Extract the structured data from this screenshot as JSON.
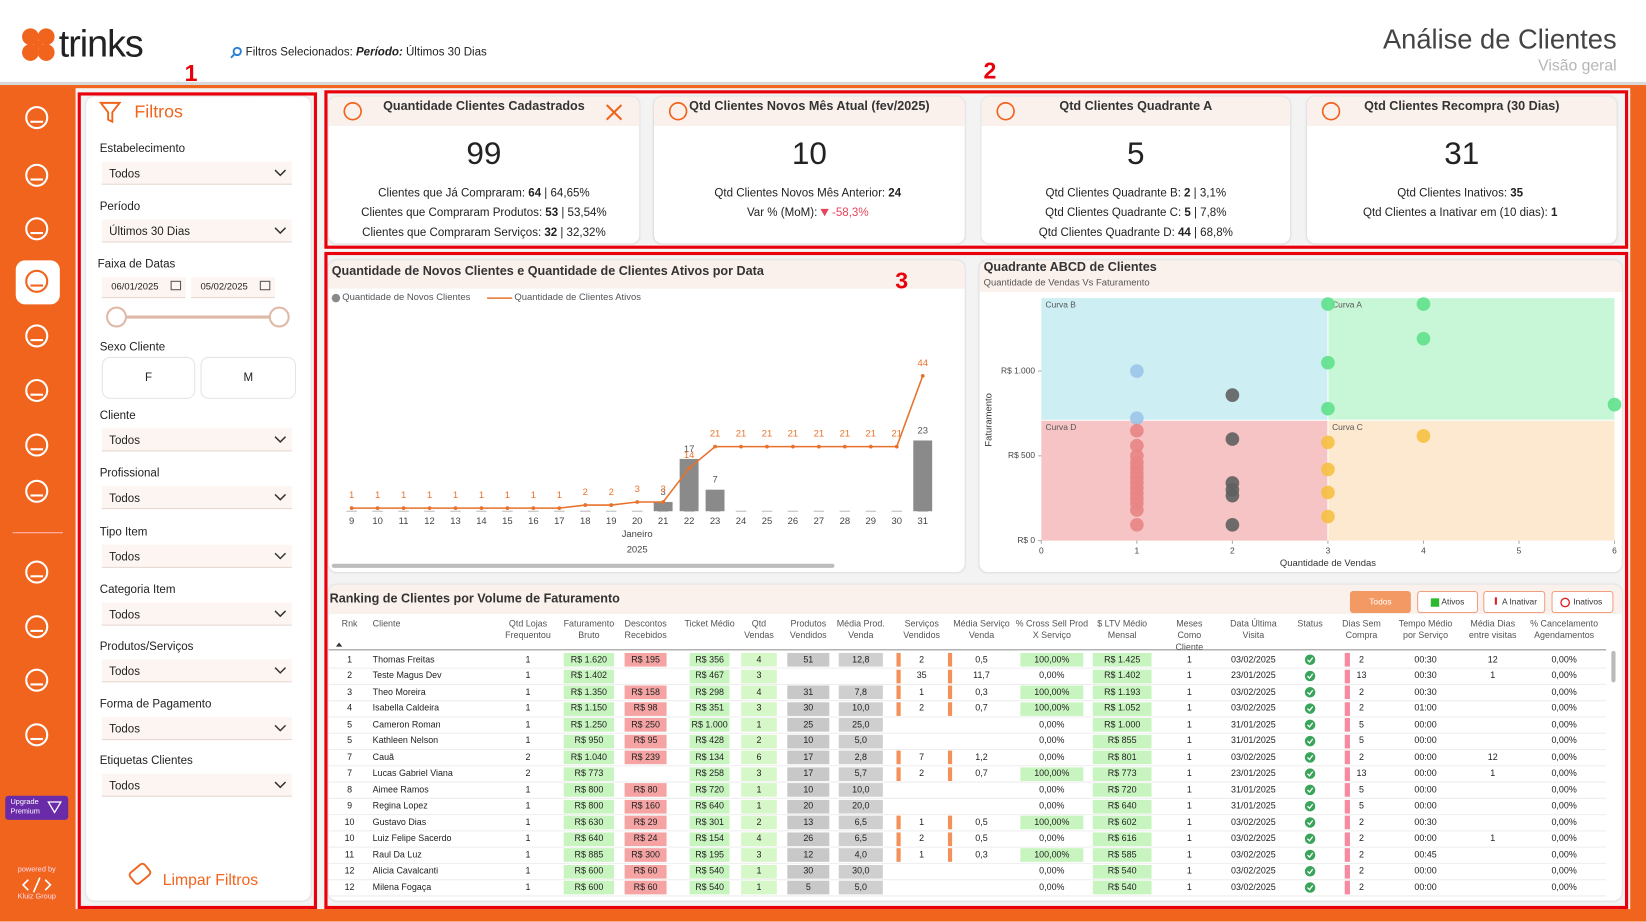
{
  "header": {
    "logo": "trinks",
    "filter_prefix": "Filtros Selecionados:",
    "filter_name": "Período:",
    "filter_value": "Últimos 30 Dias",
    "title": "Análise de Clientes",
    "subtitle": "Visão geral"
  },
  "annotations": [
    "1",
    "2",
    "3"
  ],
  "sidebar": {
    "upgrade": [
      "Upgrade",
      "Premium"
    ],
    "powered": "powered by",
    "brand": "Kluiz Group"
  },
  "filters": {
    "title": "Filtros",
    "fields": [
      {
        "label": "Estabelecimento",
        "value": "Todos"
      },
      {
        "label": "Período",
        "value": "Últimos 30 Dias"
      },
      {
        "label": "Faixa de Datas",
        "dates": [
          "06/01/2025",
          "05/02/2025"
        ]
      },
      {
        "label": "Sexo Cliente",
        "options": [
          "F",
          "M"
        ]
      },
      {
        "label": "Cliente",
        "value": "Todos"
      },
      {
        "label": "Profissional",
        "value": "Todos"
      },
      {
        "label": "Tipo Item",
        "value": "Todos"
      },
      {
        "label": "Categoria Item",
        "value": "Todos"
      },
      {
        "label": "Produtos/Serviços",
        "value": "Todos"
      },
      {
        "label": "Forma de Pagamento",
        "value": "Todos"
      },
      {
        "label": "Etiquetas Clientes",
        "value": "Todos"
      }
    ],
    "clear": "Limpar Filtros"
  },
  "kpis": [
    {
      "title": "Quantidade Clientes Cadastrados",
      "value": 99,
      "lines": [
        {
          "label": "Clientes que Já Compraram:",
          "value": "64",
          "extra": "| 64,65%"
        },
        {
          "label": "Clientes que Compraram Produtos:",
          "value": "53",
          "extra": "| 53,54%"
        },
        {
          "label": "Clientes que Compraram Serviços:",
          "value": "32",
          "extra": "| 32,32%"
        }
      ]
    },
    {
      "title": "Qtd Clientes Novos Mês Atual (fev/2025)",
      "value": 10,
      "lines": [
        {
          "label": "Qtd Clientes Novos Mês Anterior:",
          "value": "24"
        },
        {
          "label": "Var % (MoM):",
          "value": "-58,3%",
          "color": "#e8455a"
        }
      ]
    },
    {
      "title": "Qtd Clientes Quadrante A",
      "value": 5,
      "lines": [
        {
          "label": "Qtd Clientes Quadrante B:",
          "value": "2",
          "extra": "| 3,1%"
        },
        {
          "label": "Qtd Clientes Quadrante C:",
          "value": "5",
          "extra": "| 7,8%"
        },
        {
          "label": "Qtd Clientes Quadrante D:",
          "value": "44",
          "extra": "| 68,8%"
        }
      ]
    },
    {
      "title": "Qtd Clientes Recompra (30 Dias)",
      "value": 31,
      "lines": [
        {
          "label": "Qtd Clientes Inativos:",
          "value": "35"
        },
        {
          "label": "Qtd Clientes a Inativar em (10 dias):",
          "value": "1"
        }
      ]
    }
  ],
  "line_chart": {
    "type": "bar-line",
    "title": "Quantidade de Novos Clientes e Quantidade de Clientes Ativos por Data",
    "categories": [
      9,
      10,
      11,
      12,
      13,
      14,
      15,
      16,
      17,
      18,
      19,
      20,
      21,
      22,
      23,
      24,
      25,
      26,
      27,
      28,
      29,
      30,
      31
    ],
    "x_title": "Janeiro",
    "x_subtitle": "2025",
    "ylim": [
      0,
      50
    ],
    "series": [
      {
        "name": "Quantidade de Novos Clientes",
        "type": "bar",
        "color": "#8a8a8a",
        "values": [
          null,
          null,
          null,
          null,
          null,
          null,
          null,
          null,
          null,
          null,
          null,
          null,
          3,
          17,
          7,
          null,
          null,
          null,
          null,
          null,
          null,
          null,
          23
        ]
      },
      {
        "name": "Quantidade de Clientes Ativos",
        "type": "line",
        "color": "#e8722c",
        "values": [
          1,
          1,
          1,
          1,
          1,
          1,
          1,
          1,
          1,
          2,
          2,
          3,
          3,
          14,
          21,
          21,
          21,
          21,
          21,
          21,
          21,
          21,
          44
        ]
      }
    ]
  },
  "scatter": {
    "type": "scatter",
    "title": "Quadrante ABCD de Clientes",
    "subtitle": "Quantidade de Vendas Vs Faturamento",
    "x_label": "Quantidade de Vendas",
    "y_label": "Faturamento",
    "xlim": [
      0,
      6
    ],
    "ylim": [
      0,
      1430
    ],
    "xticks": [
      0,
      1,
      2,
      3,
      4,
      5,
      6
    ],
    "yticks": [
      {
        "value": 0,
        "label": "R$ 0"
      },
      {
        "value": 500,
        "label": "R$ 500"
      },
      {
        "value": 1000,
        "label": "R$ 1.000"
      }
    ],
    "split": {
      "x": 3,
      "y": 710
    },
    "quadrants": [
      {
        "label": "Curva A",
        "corner": "top-right",
        "color": "#c8f7d7"
      },
      {
        "label": "Curva B",
        "corner": "top-left",
        "color": "#cdeef2"
      },
      {
        "label": "Curva C",
        "corner": "bottom-right",
        "color": "#fde9cf"
      },
      {
        "label": "Curva D",
        "corner": "bottom-left",
        "color": "#f6c4c4"
      }
    ],
    "x": [
      1,
      1,
      1,
      1,
      1,
      1,
      1,
      1,
      1,
      1,
      1,
      1,
      1,
      1,
      1,
      1,
      2,
      2,
      2,
      2,
      2,
      2,
      3,
      3,
      3,
      3,
      3,
      3,
      3,
      4,
      4,
      4,
      6
    ],
    "y": [
      1000,
      722,
      648,
      560,
      500,
      460,
      430,
      400,
      370,
      340,
      310,
      280,
      250,
      220,
      180,
      93,
      858,
      599,
      340,
      300,
      265,
      93,
      1395,
      1049,
      778,
      580,
      420,
      284,
      142,
      1395,
      1191,
      617,
      802
    ],
    "colors": [
      "#9cc4e8",
      "#9cc4e8",
      "#e98585",
      "#e98585",
      "#e98585",
      "#e98585",
      "#e98585",
      "#e98585",
      "#e98585",
      "#e98585",
      "#e98585",
      "#e98585",
      "#e98585",
      "#e98585",
      "#e98585",
      "#e98585",
      "#606060",
      "#606060",
      "#606060",
      "#606060",
      "#606060",
      "#606060",
      "#5fe08c",
      "#5fe08c",
      "#5fe08c",
      "#f6c041",
      "#f6c041",
      "#f6c041",
      "#f6c041",
      "#5fe08c",
      "#5fe08c",
      "#f6c041",
      "#5fe08c"
    ]
  },
  "table": {
    "title": "Ranking de Clientes por Volume de Faturamento",
    "tabs": [
      "Todos",
      "Ativos",
      "A Inativar",
      "Inativos"
    ],
    "headers": [
      "Rnk",
      "Cliente",
      "Qtd Lojas Frequentou",
      "Faturamento Bruto",
      "Descontos Recebidos",
      "Ticket Médio",
      "Qtd Vendas",
      "Produtos Vendidos",
      "Média Prod. Venda",
      "Serviços Vendidos",
      "Média Serviço Venda",
      "% Cross Sell Prod X Serviço",
      "$ LTV Médio Mensal",
      "Meses Como Cliente",
      "Data Última Visita",
      "Status",
      "Dias Sem Compra",
      "Tempo Médio por Serviço",
      "Média Dias entre visitas",
      "% Cancelamento Agendamentos"
    ],
    "rows": [
      [
        "1",
        "Thomas Freitas",
        "1",
        "R$ 1.620",
        "R$ 195",
        "R$ 356",
        "4",
        "51",
        "12,8",
        "2",
        "0,5",
        "100,00%",
        "R$ 1.425",
        "1",
        "03/02/2025",
        "2",
        "00:30",
        "12",
        "0,00%"
      ],
      [
        "2",
        "Teste Magus Dev",
        "1",
        "R$ 1.402",
        null,
        "R$ 467",
        "3",
        null,
        null,
        "35",
        "11,7",
        "0,00%",
        "R$ 1.402",
        "1",
        "23/01/2025",
        "13",
        "00:30",
        "1",
        "0,00%"
      ],
      [
        "3",
        "Theo Moreira",
        "1",
        "R$ 1.350",
        "R$ 158",
        "R$ 298",
        "4",
        "31",
        "7,8",
        "1",
        "0,3",
        "100,00%",
        "R$ 1.193",
        "1",
        "03/02/2025",
        "2",
        "00:30",
        null,
        "0,00%"
      ],
      [
        "4",
        "Isabella Caldeira",
        "1",
        "R$ 1.150",
        "R$ 98",
        "R$ 351",
        "3",
        "30",
        "10,0",
        "2",
        "0,7",
        "100,00%",
        "R$ 1.052",
        "1",
        "03/02/2025",
        "2",
        "01:00",
        null,
        "0,00%"
      ],
      [
        "5",
        "Cameron Roman",
        "1",
        "R$ 1.250",
        "R$ 250",
        "R$ 1.000",
        "1",
        "25",
        "25,0",
        null,
        null,
        "0,00%",
        "R$ 1.000",
        "1",
        "31/01/2025",
        "5",
        "00:00",
        null,
        "0,00%"
      ],
      [
        "5",
        "Kathleen Nelson",
        "1",
        "R$ 950",
        "R$ 95",
        "R$ 428",
        "2",
        "10",
        "5,0",
        null,
        null,
        "0,00%",
        "R$ 855",
        "1",
        "31/01/2025",
        "5",
        "00:00",
        null,
        "0,00%"
      ],
      [
        "7",
        "Cauã",
        "2",
        "R$ 1.040",
        "R$ 239",
        "R$ 134",
        "6",
        "17",
        "2,8",
        "7",
        "1,2",
        "0,00%",
        "R$ 801",
        "1",
        "03/02/2025",
        "2",
        "00:00",
        "12",
        "0,00%"
      ],
      [
        "7",
        "Lucas Gabriel Viana",
        "2",
        "R$ 773",
        null,
        "R$ 258",
        "3",
        "17",
        "5,7",
        "2",
        "0,7",
        "100,00%",
        "R$ 773",
        "1",
        "23/01/2025",
        "13",
        "00:00",
        "1",
        "0,00%"
      ],
      [
        "8",
        "Aimee Ramos",
        "1",
        "R$ 800",
        "R$ 80",
        "R$ 720",
        "1",
        "10",
        "10,0",
        null,
        null,
        "0,00%",
        "R$ 720",
        "1",
        "31/01/2025",
        "5",
        "00:00",
        null,
        "0,00%"
      ],
      [
        "9",
        "Regina Lopez",
        "1",
        "R$ 800",
        "R$ 160",
        "R$ 640",
        "1",
        "20",
        "20,0",
        null,
        null,
        "0,00%",
        "R$ 640",
        "1",
        "31/01/2025",
        "5",
        "00:00",
        null,
        "0,00%"
      ],
      [
        "10",
        "Gustavo Dias",
        "1",
        "R$ 630",
        "R$ 29",
        "R$ 301",
        "2",
        "13",
        "6,5",
        "1",
        "0,5",
        "100,00%",
        "R$ 602",
        "1",
        "03/02/2025",
        "2",
        "00:30",
        null,
        "0,00%"
      ],
      [
        "10",
        "Luiz Felipe Sacerdo",
        "1",
        "R$ 640",
        "R$ 24",
        "R$ 154",
        "4",
        "26",
        "6,5",
        "2",
        "0,5",
        "0,00%",
        "R$ 616",
        "1",
        "03/02/2025",
        "2",
        "00:00",
        "1",
        "0,00%"
      ],
      [
        "11",
        "Raul Da Luz",
        "1",
        "R$ 885",
        "R$ 300",
        "R$ 195",
        "3",
        "12",
        "4,0",
        "1",
        "0,3",
        "100,00%",
        "R$ 585",
        "1",
        "03/02/2025",
        "2",
        "00:45",
        null,
        "0,00%"
      ],
      [
        "12",
        "Alicia Cavalcanti",
        "1",
        "R$ 600",
        "R$ 60",
        "R$ 540",
        "1",
        "30",
        "30,0",
        null,
        null,
        "0,00%",
        "R$ 540",
        "1",
        "03/02/2025",
        "2",
        "00:00",
        null,
        "0,00%"
      ],
      [
        "12",
        "Milena Fogaça",
        "1",
        "R$ 600",
        "R$ 60",
        "R$ 540",
        "1",
        "5",
        "5,0",
        null,
        null,
        "0,00%",
        "R$ 540",
        "1",
        "03/02/2025",
        "2",
        "00:00",
        null,
        "0,00%"
      ]
    ]
  }
}
